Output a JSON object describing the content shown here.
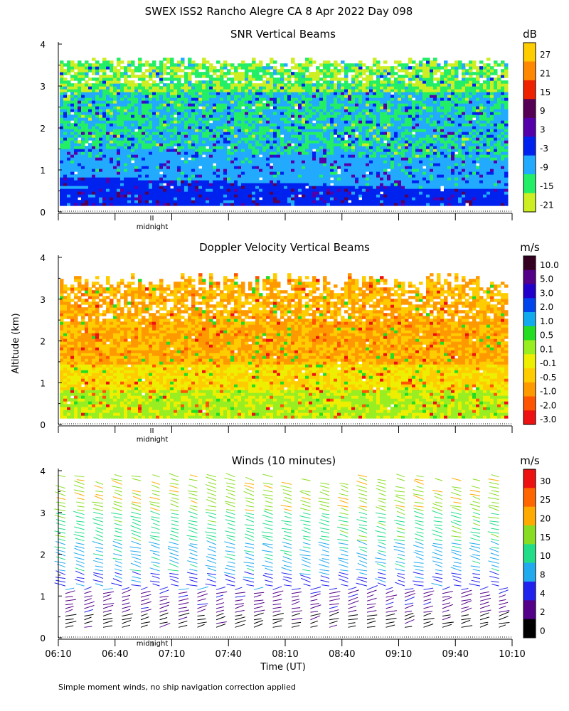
{
  "title": "SWEX ISS2 Rancho Alegre CA    8 Apr 2022 Day 098",
  "footnote": "Simple moment winds, no ship navigation correction applied",
  "ylabel": "Altitude (km)",
  "xlabel": "Time (UT)",
  "midnight_label": "midnight",
  "chart_data": [
    {
      "type": "heatmap",
      "title": "SNR Vertical Beams",
      "ylabel": "Altitude (km)",
      "yticks": [
        "0",
        "1",
        "2",
        "3",
        "4"
      ],
      "ylim": [
        0,
        4
      ],
      "xlim": [
        "06:10",
        "10:10"
      ],
      "colorbar": {
        "unit": "dB",
        "labels": [
          "27",
          "21",
          "15",
          "9",
          "3",
          "-3",
          "-9",
          "-15",
          "-21"
        ],
        "colors": [
          "#ffcc00",
          "#ff8800",
          "#ee2200",
          "#550055",
          "#5500aa",
          "#0022ee",
          "#22aaff",
          "#22ee66",
          "#ccee22"
        ]
      }
    },
    {
      "type": "heatmap",
      "title": "Doppler Velocity Vertical Beams",
      "ylabel": "Altitude (km)",
      "yticks": [
        "0",
        "1",
        "2",
        "3",
        "4"
      ],
      "ylim": [
        0,
        4
      ],
      "xlim": [
        "06:10",
        "10:10"
      ],
      "colorbar": {
        "unit": "m/s",
        "labels": [
          "10.0",
          "5.0",
          "3.0",
          "2.0",
          "1.0",
          "0.5",
          "0.1",
          "-0.1",
          "-0.5",
          "-1.0",
          "-2.0",
          "-3.0"
        ],
        "colors": [
          "#330022",
          "#550088",
          "#2200cc",
          "#0044ee",
          "#11aaee",
          "#22dd22",
          "#99ee22",
          "#eeee00",
          "#ffcc00",
          "#ff9900",
          "#ff5500",
          "#ee1111"
        ]
      }
    },
    {
      "type": "scatter",
      "title": "Winds (10 minutes)",
      "ylabel": "Altitude (km)",
      "xlabel": "Time (UT)",
      "yticks": [
        "0",
        "1",
        "2",
        "3",
        "4"
      ],
      "ylim": [
        0,
        4
      ],
      "xticks": [
        "06:10",
        "06:40",
        "07:10",
        "07:40",
        "08:10",
        "08:40",
        "09:10",
        "09:40",
        "10:10"
      ],
      "colorbar": {
        "unit": "m/s",
        "labels": [
          "30",
          "25",
          "20",
          "15",
          "10",
          "8",
          "4",
          "2",
          "0"
        ],
        "colors": [
          "#ee1111",
          "#ff6600",
          "#ffaa00",
          "#88dd22",
          "#22dd88",
          "#22aaee",
          "#2222ee",
          "#550088",
          "#000000"
        ]
      }
    }
  ]
}
